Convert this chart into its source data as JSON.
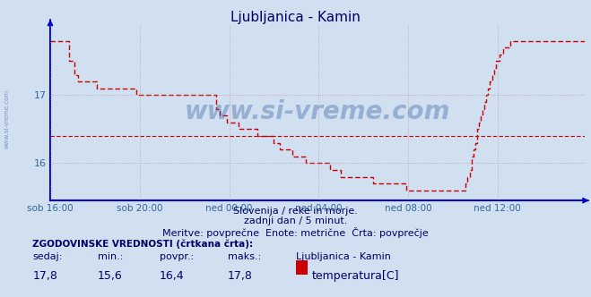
{
  "title": "Ljubljanica - Kamin",
  "bg_color": "#d0e0f0",
  "plot_bg_color": "#d0e0f0",
  "line_color": "#cc0000",
  "avg_line_color": "#cc0000",
  "axis_color": "#0000cc",
  "grid_color": "#cc8888",
  "text_color": "#000066",
  "watermark_color": "#4466aa",
  "ylabel_color": "#336699",
  "xlabel_color": "#336699",
  "ymin": 15.45,
  "ymax": 18.05,
  "yticks": [
    16,
    17
  ],
  "avg_value": 16.4,
  "x_labels": [
    "sob 16:00",
    "sob 20:00",
    "ned 00:00",
    "ned 04:00",
    "ned 08:00",
    "ned 12:00"
  ],
  "subtitle1": "Slovenija / reke in morje.",
  "subtitle2": "zadnji dan / 5 minut.",
  "subtitle3": "Meritve: povprečne  Enote: metrične  Črta: povprečje",
  "legend_title": "ZGODOVINSKE VREDNOSTI (črtkana črta):",
  "legend_headers": [
    "sedaj:",
    "min.:",
    "povpr.:",
    "maks.:",
    "Ljubljanica - Kamin"
  ],
  "legend_values": [
    "17,8",
    "15,6",
    "16,4",
    "17,8"
  ],
  "legend_series": "temperatura[C]",
  "legend_color": "#cc0000",
  "watermark_text": "www.si-vreme.com",
  "n_points": 288,
  "temperature_data": [
    17.8,
    17.8,
    17.8,
    17.8,
    17.8,
    17.8,
    17.8,
    17.8,
    17.8,
    17.8,
    17.5,
    17.5,
    17.5,
    17.3,
    17.3,
    17.2,
    17.2,
    17.2,
    17.2,
    17.2,
    17.2,
    17.2,
    17.2,
    17.2,
    17.2,
    17.1,
    17.1,
    17.1,
    17.1,
    17.1,
    17.1,
    17.1,
    17.1,
    17.1,
    17.1,
    17.1,
    17.1,
    17.1,
    17.1,
    17.1,
    17.1,
    17.1,
    17.1,
    17.1,
    17.1,
    17.1,
    17.0,
    17.0,
    17.0,
    17.0,
    17.0,
    17.0,
    17.0,
    17.0,
    17.0,
    17.0,
    17.0,
    17.0,
    17.0,
    17.0,
    17.0,
    17.0,
    17.0,
    17.0,
    17.0,
    17.0,
    17.0,
    17.0,
    17.0,
    17.0,
    17.0,
    17.0,
    17.0,
    17.0,
    17.0,
    17.0,
    17.0,
    17.0,
    17.0,
    17.0,
    17.0,
    17.0,
    17.0,
    17.0,
    17.0,
    17.0,
    17.0,
    17.0,
    17.0,
    16.8,
    16.8,
    16.7,
    16.7,
    16.7,
    16.7,
    16.6,
    16.6,
    16.6,
    16.6,
    16.6,
    16.6,
    16.5,
    16.5,
    16.5,
    16.5,
    16.5,
    16.5,
    16.5,
    16.5,
    16.5,
    16.5,
    16.4,
    16.4,
    16.4,
    16.4,
    16.4,
    16.4,
    16.4,
    16.4,
    16.4,
    16.3,
    16.3,
    16.3,
    16.2,
    16.2,
    16.2,
    16.2,
    16.2,
    16.2,
    16.2,
    16.1,
    16.1,
    16.1,
    16.1,
    16.1,
    16.1,
    16.1,
    16.0,
    16.0,
    16.0,
    16.0,
    16.0,
    16.0,
    16.0,
    16.0,
    16.0,
    16.0,
    16.0,
    16.0,
    16.0,
    15.9,
    15.9,
    15.9,
    15.9,
    15.9,
    15.9,
    15.8,
    15.8,
    15.8,
    15.8,
    15.8,
    15.8,
    15.8,
    15.8,
    15.8,
    15.8,
    15.8,
    15.8,
    15.8,
    15.8,
    15.8,
    15.8,
    15.8,
    15.7,
    15.7,
    15.7,
    15.7,
    15.7,
    15.7,
    15.7,
    15.7,
    15.7,
    15.7,
    15.7,
    15.7,
    15.7,
    15.7,
    15.7,
    15.7,
    15.7,
    15.7,
    15.6,
    15.6,
    15.6,
    15.6,
    15.6,
    15.6,
    15.6,
    15.6,
    15.6,
    15.6,
    15.6,
    15.6,
    15.6,
    15.6,
    15.6,
    15.6,
    15.6,
    15.6,
    15.6,
    15.6,
    15.6,
    15.6,
    15.6,
    15.6,
    15.6,
    15.6,
    15.6,
    15.6,
    15.6,
    15.6,
    15.6,
    15.6,
    15.7,
    15.8,
    15.9,
    16.1,
    16.2,
    16.3,
    16.5,
    16.6,
    16.7,
    16.8,
    16.9,
    17.0,
    17.1,
    17.2,
    17.3,
    17.4,
    17.5,
    17.5,
    17.6,
    17.6,
    17.7,
    17.7,
    17.7,
    17.7,
    17.8,
    17.8,
    17.8,
    17.8,
    17.8,
    17.8,
    17.8,
    17.8,
    17.8,
    17.8,
    17.8,
    17.8,
    17.8,
    17.8,
    17.8,
    17.8,
    17.8,
    17.8,
    17.8,
    17.8,
    17.8,
    17.8,
    17.8,
    17.8,
    17.8,
    17.8,
    17.8,
    17.8,
    17.8,
    17.8,
    17.8,
    17.8,
    17.8,
    17.8,
    17.8,
    17.8,
    17.8,
    17.8,
    17.8,
    17.8,
    17.8
  ]
}
